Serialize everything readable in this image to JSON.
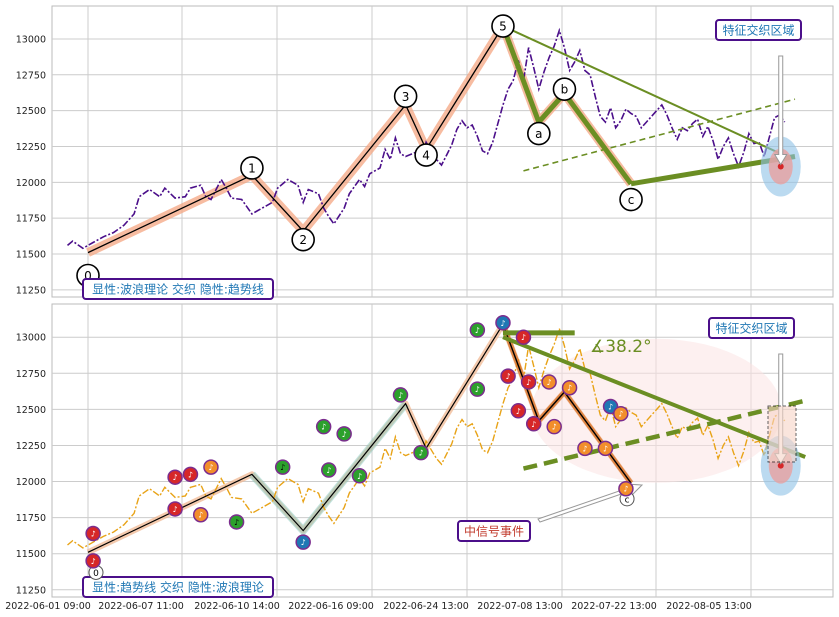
{
  "chart_data": [
    {
      "type": "line",
      "panel": "top",
      "yticks": [
        11250,
        11500,
        11750,
        12000,
        12250,
        12500,
        12750,
        13000
      ],
      "ylim": [
        11200,
        13230
      ],
      "series": [
        {
          "name": "",
          "color": "#4b0f8a",
          "style": "dash-dot",
          "values": [
            [
              1,
              11560
            ],
            [
              2,
              11590
            ],
            [
              4,
              11540
            ],
            [
              6,
              11580
            ],
            [
              8,
              11620
            ],
            [
              10,
              11650
            ],
            [
              12,
              11700
            ],
            [
              14,
              11780
            ],
            [
              15,
              11900
            ],
            [
              17,
              11950
            ],
            [
              19,
              11900
            ],
            [
              20,
              11960
            ],
            [
              22,
              11890
            ],
            [
              24,
              11900
            ],
            [
              25,
              11960
            ],
            [
              27,
              11980
            ],
            [
              28,
              11900
            ],
            [
              29,
              11880
            ],
            [
              31,
              12020
            ],
            [
              32,
              11960
            ],
            [
              33,
              11890
            ],
            [
              35,
              11880
            ],
            [
              37,
              11780
            ],
            [
              39,
              11820
            ],
            [
              41,
              11860
            ],
            [
              42,
              11960
            ],
            [
              44,
              12020
            ],
            [
              46,
              11980
            ],
            [
              47,
              11860
            ],
            [
              48,
              11950
            ],
            [
              50,
              11920
            ],
            [
              51,
              11820
            ],
            [
              52,
              11760
            ],
            [
              53,
              11710
            ],
            [
              55,
              11820
            ],
            [
              56,
              11920
            ],
            [
              58,
              12020
            ],
            [
              59,
              11970
            ],
            [
              60,
              12060
            ],
            [
              62,
              12100
            ],
            [
              63,
              12230
            ],
            [
              64,
              12160
            ],
            [
              65,
              12310
            ],
            [
              66,
              12200
            ],
            [
              67,
              12180
            ],
            [
              69,
              12210
            ],
            [
              70,
              12150
            ],
            [
              71,
              12280
            ],
            [
              72,
              12220
            ],
            [
              73,
              12160
            ],
            [
              74,
              12120
            ],
            [
              75,
              12190
            ],
            [
              76,
              12260
            ],
            [
              77,
              12370
            ],
            [
              78,
              12430
            ],
            [
              79,
              12380
            ],
            [
              80,
              12400
            ],
            [
              81,
              12320
            ],
            [
              82,
              12220
            ],
            [
              83,
              12200
            ],
            [
              84,
              12280
            ],
            [
              86,
              12540
            ],
            [
              87,
              12650
            ],
            [
              88,
              12710
            ],
            [
              89,
              12850
            ],
            [
              90,
              12710
            ],
            [
              91,
              12940
            ],
            [
              92,
              12800
            ],
            [
              93,
              12650
            ],
            [
              94,
              12770
            ],
            [
              95,
              12870
            ],
            [
              96,
              12950
            ],
            [
              97,
              13060
            ],
            [
              98,
              12940
            ],
            [
              99,
              12780
            ],
            [
              100,
              12840
            ],
            [
              101,
              12920
            ],
            [
              102,
              12780
            ],
            [
              103,
              12750
            ],
            [
              104,
              12600
            ],
            [
              105,
              12460
            ],
            [
              106,
              12420
            ],
            [
              107,
              12520
            ],
            [
              108,
              12380
            ],
            [
              109,
              12430
            ],
            [
              110,
              12510
            ],
            [
              111,
              12480
            ],
            [
              112,
              12460
            ],
            [
              113,
              12380
            ],
            [
              114,
              12420
            ],
            [
              115,
              12460
            ],
            [
              116,
              12500
            ],
            [
              117,
              12540
            ],
            [
              118,
              12470
            ],
            [
              119,
              12380
            ],
            [
              120,
              12300
            ],
            [
              121,
              12380
            ],
            [
              122,
              12360
            ],
            [
              123,
              12410
            ],
            [
              124,
              12440
            ],
            [
              125,
              12320
            ],
            [
              126,
              12390
            ],
            [
              127,
              12290
            ],
            [
              128,
              12160
            ],
            [
              129,
              12250
            ],
            [
              130,
              12310
            ],
            [
              131,
              12200
            ],
            [
              132,
              12110
            ],
            [
              133,
              12210
            ],
            [
              134,
              12340
            ],
            [
              135,
              12270
            ],
            [
              136,
              12280
            ],
            [
              137,
              12180
            ],
            [
              139,
              12450
            ],
            [
              140,
              12470
            ],
            [
              141,
              12420
            ]
          ]
        },
        {
          "name": "",
          "color": "#000000",
          "style": "solid",
          "values": [
            [
              5,
              11510
            ],
            [
              37,
              12050
            ],
            [
              47,
              11660
            ],
            [
              67,
              12540
            ],
            [
              71,
              12230
            ],
            [
              86,
              13090
            ],
            [
              93,
              12420
            ],
            [
              98,
              12620
            ],
            [
              111,
              11990
            ]
          ]
        }
      ],
      "wave_labels": [
        "0",
        "1",
        "2",
        "3",
        "4",
        "5",
        "a",
        "b",
        "c"
      ],
      "trend_lines": [
        {
          "color": "#6b8e23",
          "style": "solid",
          "from": [
            86,
            13090
          ],
          "to": [
            142,
            12170
          ]
        },
        {
          "color": "#6b8e23",
          "style": "dashed",
          "from": [
            90,
            12080
          ],
          "to": [
            143,
            12580
          ]
        }
      ],
      "annotation": "特征交织区域",
      "legend": "显性:波浪理论 交织 隐性:趋势线"
    },
    {
      "type": "line",
      "panel": "bottom",
      "yticks": [
        11250,
        11500,
        11750,
        12000,
        12250,
        12500,
        12750,
        13000
      ],
      "ylim": [
        11200,
        13230
      ],
      "series": [
        {
          "name": "",
          "color": "#e8a317",
          "style": "dash-dot",
          "values": [
            [
              1,
              11560
            ],
            [
              2,
              11590
            ],
            [
              4,
              11540
            ],
            [
              6,
              11580
            ],
            [
              8,
              11620
            ],
            [
              10,
              11650
            ],
            [
              12,
              11700
            ],
            [
              14,
              11780
            ],
            [
              15,
              11900
            ],
            [
              17,
              11950
            ],
            [
              19,
              11900
            ],
            [
              20,
              11960
            ],
            [
              22,
              11890
            ],
            [
              24,
              11900
            ],
            [
              25,
              11960
            ],
            [
              27,
              11980
            ],
            [
              28,
              11900
            ],
            [
              29,
              11880
            ],
            [
              31,
              12020
            ],
            [
              32,
              11960
            ],
            [
              33,
              11890
            ],
            [
              35,
              11880
            ],
            [
              37,
              11780
            ],
            [
              39,
              11820
            ],
            [
              41,
              11860
            ],
            [
              42,
              11960
            ],
            [
              44,
              12020
            ],
            [
              46,
              11980
            ],
            [
              47,
              11860
            ],
            [
              48,
              11950
            ],
            [
              50,
              11920
            ],
            [
              51,
              11820
            ],
            [
              52,
              11760
            ],
            [
              53,
              11710
            ],
            [
              55,
              11820
            ],
            [
              56,
              11920
            ],
            [
              58,
              12020
            ],
            [
              59,
              11970
            ],
            [
              60,
              12060
            ],
            [
              62,
              12100
            ],
            [
              63,
              12230
            ],
            [
              64,
              12160
            ],
            [
              65,
              12310
            ],
            [
              66,
              12200
            ],
            [
              67,
              12180
            ],
            [
              69,
              12210
            ],
            [
              70,
              12150
            ],
            [
              71,
              12280
            ],
            [
              72,
              12220
            ],
            [
              73,
              12160
            ],
            [
              74,
              12120
            ],
            [
              75,
              12190
            ],
            [
              76,
              12260
            ],
            [
              77,
              12370
            ],
            [
              78,
              12430
            ],
            [
              79,
              12380
            ],
            [
              80,
              12400
            ],
            [
              81,
              12320
            ],
            [
              82,
              12220
            ],
            [
              83,
              12200
            ],
            [
              84,
              12280
            ],
            [
              86,
              12540
            ],
            [
              87,
              12650
            ],
            [
              88,
              12710
            ],
            [
              89,
              12850
            ],
            [
              90,
              12710
            ],
            [
              91,
              12940
            ],
            [
              92,
              12800
            ],
            [
              93,
              12650
            ],
            [
              94,
              12770
            ],
            [
              95,
              12870
            ],
            [
              96,
              12950
            ],
            [
              97,
              13060
            ],
            [
              98,
              12940
            ],
            [
              99,
              12780
            ],
            [
              100,
              12840
            ],
            [
              101,
              12920
            ],
            [
              102,
              12780
            ],
            [
              103,
              12750
            ],
            [
              104,
              12600
            ],
            [
              105,
              12460
            ],
            [
              106,
              12420
            ],
            [
              107,
              12520
            ],
            [
              108,
              12380
            ],
            [
              109,
              12430
            ],
            [
              110,
              12510
            ],
            [
              111,
              12480
            ],
            [
              112,
              12460
            ],
            [
              113,
              12380
            ],
            [
              114,
              12420
            ],
            [
              115,
              12460
            ],
            [
              116,
              12500
            ],
            [
              117,
              12540
            ],
            [
              118,
              12470
            ],
            [
              119,
              12380
            ],
            [
              120,
              12300
            ],
            [
              121,
              12380
            ],
            [
              122,
              12360
            ],
            [
              123,
              12410
            ],
            [
              124,
              12440
            ],
            [
              125,
              12320
            ],
            [
              126,
              12390
            ],
            [
              127,
              12290
            ],
            [
              128,
              12160
            ],
            [
              129,
              12250
            ],
            [
              130,
              12310
            ],
            [
              131,
              12200
            ],
            [
              132,
              12110
            ],
            [
              133,
              12210
            ],
            [
              134,
              12340
            ],
            [
              135,
              12270
            ],
            [
              136,
              12280
            ],
            [
              137,
              12180
            ],
            [
              139,
              12450
            ],
            [
              140,
              12470
            ],
            [
              141,
              12420
            ]
          ]
        },
        {
          "name": "",
          "color": "#000000",
          "style": "solid",
          "values": [
            [
              5,
              11510
            ],
            [
              37,
              12050
            ],
            [
              47,
              11660
            ],
            [
              67,
              12540
            ],
            [
              71,
              12230
            ],
            [
              86,
              13090
            ],
            [
              93,
              12420
            ],
            [
              98,
              12620
            ],
            [
              111,
              11990
            ]
          ]
        }
      ],
      "trend_lines": [
        {
          "color": "#6b8e23",
          "style": "solid",
          "from": [
            86,
            13000
          ],
          "to": [
            145,
            12170
          ]
        },
        {
          "color": "#6b8e23",
          "style": "dashed",
          "from": [
            90,
            12090
          ],
          "to": [
            145,
            12560
          ]
        }
      ],
      "angle_label": "∡38.2°",
      "annotations": [
        "特征交织区域",
        "中信号事件"
      ],
      "wave_labels": [
        "0",
        "c"
      ],
      "legend": "显性:趋势线 交织 隐性:波浪理论"
    }
  ],
  "x_tick_labels": [
    "2022-06-01 09:00",
    "2022-06-07 11:00",
    "2022-06-10 14:00",
    "2022-06-16 09:00",
    "2022-06-24 13:00",
    "2022-07-08 13:00",
    "2022-07-22 13:00",
    "2022-08-05 13:00"
  ],
  "colors": {
    "grid": "#cccccc",
    "wave_band": "#f4a582",
    "trend": "#6b8e23",
    "label_border": "#4b0f8a",
    "label_text": "#1f77b4"
  }
}
